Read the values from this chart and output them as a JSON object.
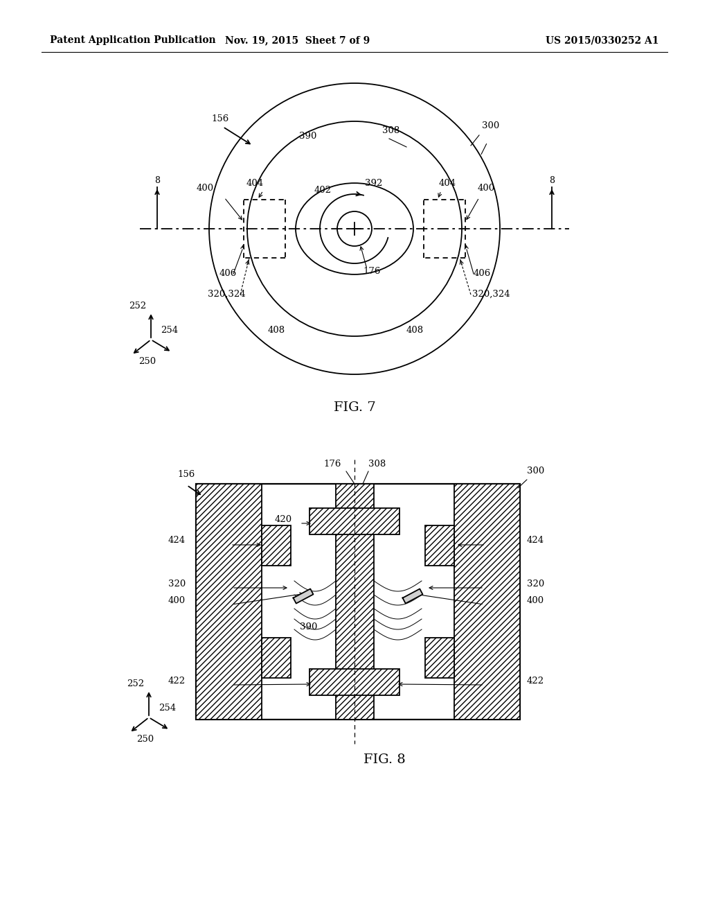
{
  "bg_color": "#ffffff",
  "header_text": "Patent Application Publication",
  "header_date": "Nov. 19, 2015  Sheet 7 of 9",
  "header_patent": "US 2015/0330252 A1",
  "fig7_label": "FIG. 7",
  "fig8_label": "FIG. 8",
  "line_color": "#000000"
}
